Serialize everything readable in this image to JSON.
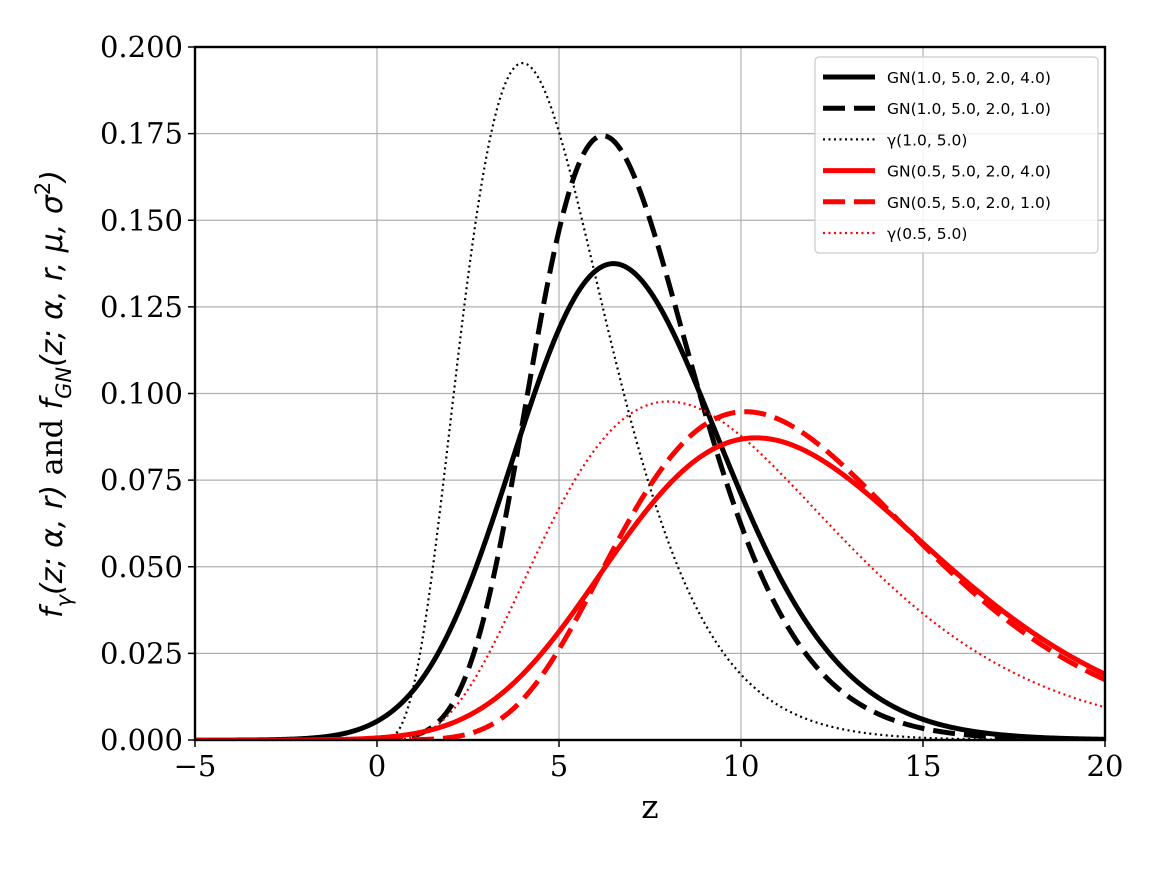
{
  "chart_data": {
    "type": "line",
    "title": "",
    "xlabel": "z",
    "ylabel": "f_γ(z; α, r) and f_GN(z; α, r, μ, σ²)",
    "xlim": [
      -5,
      20
    ],
    "ylim": [
      0,
      0.2
    ],
    "grid": true,
    "legend_position": "top-right",
    "x_ticks": [
      "−5",
      "0",
      "5",
      "10",
      "15",
      "20"
    ],
    "y_ticks": [
      "0.000",
      "0.025",
      "0.050",
      "0.075",
      "0.100",
      "0.125",
      "0.150",
      "0.175",
      "0.200"
    ],
    "series": [
      {
        "name": "GN(1.0, 5.0, 2.0, 4.0)",
        "color": "#000000",
        "style": "solid",
        "kind": "gn",
        "alpha": 1.0,
        "r": 5.0,
        "mu": 2.0,
        "sigma2": 4.0
      },
      {
        "name": "GN(1.0, 5.0, 2.0, 1.0)",
        "color": "#000000",
        "style": "dashed",
        "kind": "gn",
        "alpha": 1.0,
        "r": 5.0,
        "mu": 2.0,
        "sigma2": 1.0
      },
      {
        "name": "γ(1.0, 5.0)",
        "color": "#000000",
        "style": "dotted",
        "kind": "gamma",
        "alpha": 1.0,
        "r": 5.0
      },
      {
        "name": "GN(0.5, 5.0, 2.0, 4.0)",
        "color": "#ff0000",
        "style": "solid",
        "kind": "gn",
        "alpha": 0.5,
        "r": 5.0,
        "mu": 2.0,
        "sigma2": 4.0
      },
      {
        "name": "GN(0.5, 5.0, 2.0, 1.0)",
        "color": "#ff0000",
        "style": "dashed",
        "kind": "gn",
        "alpha": 0.5,
        "r": 5.0,
        "mu": 2.0,
        "sigma2": 1.0
      },
      {
        "name": "γ(0.5, 5.0)",
        "color": "#ff0000",
        "style": "dotted",
        "kind": "gamma",
        "alpha": 0.5,
        "r": 5.0
      }
    ]
  }
}
